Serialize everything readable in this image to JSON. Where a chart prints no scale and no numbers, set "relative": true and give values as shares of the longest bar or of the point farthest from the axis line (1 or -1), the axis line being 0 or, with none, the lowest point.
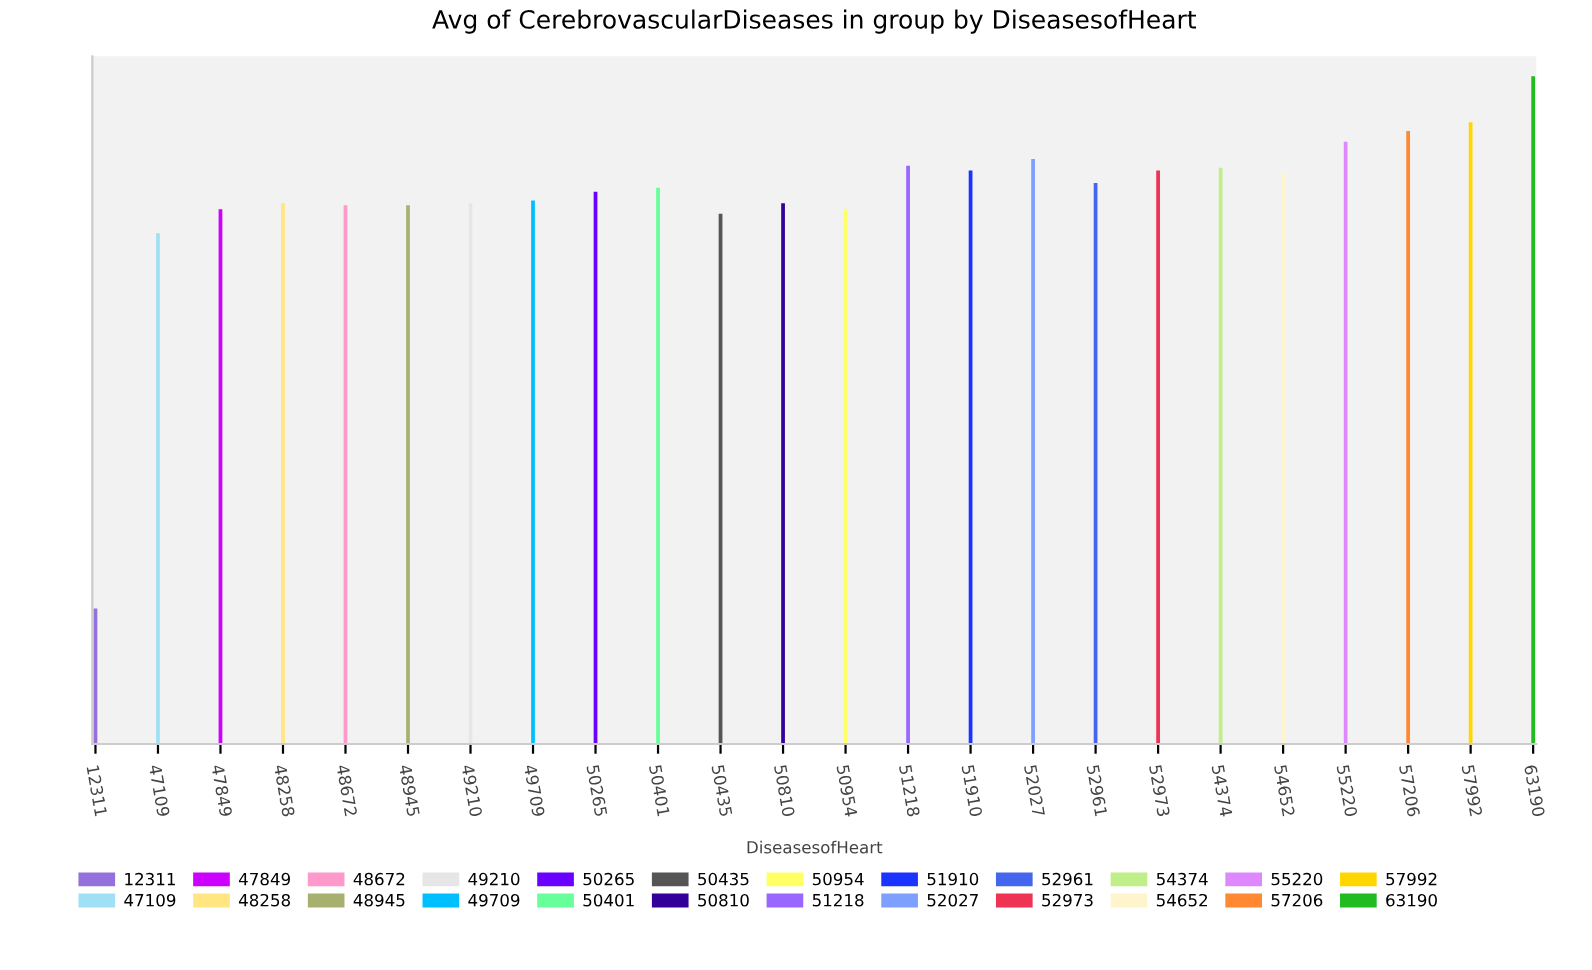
{
  "chart_data": {
    "type": "bar",
    "title": "Avg of CerebrovascularDiseases in group by DiseasesofHeart",
    "xlabel": "DiseasesofHeart",
    "relative": true,
    "legend": "bottom",
    "grid": false,
    "categories": [
      "12311",
      "47109",
      "47849",
      "48258",
      "48672",
      "48945",
      "49210",
      "49709",
      "50265",
      "50401",
      "50435",
      "50810",
      "50954",
      "51218",
      "51910",
      "52027",
      "52961",
      "52973",
      "54374",
      "54652",
      "55220",
      "57206",
      "57992",
      "63190"
    ],
    "series": [
      {
        "name": "12311",
        "color": "#9370db",
        "values": [
          0.203,
          null,
          null,
          null,
          null,
          null,
          null,
          null,
          null,
          null,
          null,
          null,
          null,
          null,
          null,
          null,
          null,
          null,
          null,
          null,
          null,
          null,
          null,
          null
        ]
      },
      {
        "name": "47109",
        "color": "#a0e0f5",
        "values": [
          null,
          0.765,
          null,
          null,
          null,
          null,
          null,
          null,
          null,
          null,
          null,
          null,
          null,
          null,
          null,
          null,
          null,
          null,
          null,
          null,
          null,
          null,
          null,
          null
        ]
      },
      {
        "name": "47849",
        "color": "#cc00ff",
        "values": [
          null,
          null,
          0.801,
          null,
          null,
          null,
          null,
          null,
          null,
          null,
          null,
          null,
          null,
          null,
          null,
          null,
          null,
          null,
          null,
          null,
          null,
          null,
          null,
          null
        ]
      },
      {
        "name": "48258",
        "color": "#ffe680",
        "values": [
          null,
          null,
          null,
          0.81,
          null,
          null,
          null,
          null,
          null,
          null,
          null,
          null,
          null,
          null,
          null,
          null,
          null,
          null,
          null,
          null,
          null,
          null,
          null,
          null
        ]
      },
      {
        "name": "48672",
        "color": "#ff99cc",
        "values": [
          null,
          null,
          null,
          null,
          0.807,
          null,
          null,
          null,
          null,
          null,
          null,
          null,
          null,
          null,
          null,
          null,
          null,
          null,
          null,
          null,
          null,
          null,
          null,
          null
        ]
      },
      {
        "name": "48945",
        "color": "#a8b070",
        "values": [
          null,
          null,
          null,
          null,
          null,
          0.807,
          null,
          null,
          null,
          null,
          null,
          null,
          null,
          null,
          null,
          null,
          null,
          null,
          null,
          null,
          null,
          null,
          null,
          null
        ]
      },
      {
        "name": "49210",
        "color": "#e6e6e6",
        "values": [
          null,
          null,
          null,
          null,
          null,
          null,
          0.81,
          null,
          null,
          null,
          null,
          null,
          null,
          null,
          null,
          null,
          null,
          null,
          null,
          null,
          null,
          null,
          null,
          null
        ]
      },
      {
        "name": "49709",
        "color": "#00bfff",
        "values": [
          null,
          null,
          null,
          null,
          null,
          null,
          null,
          0.814,
          null,
          null,
          null,
          null,
          null,
          null,
          null,
          null,
          null,
          null,
          null,
          null,
          null,
          null,
          null,
          null
        ]
      },
      {
        "name": "50265",
        "color": "#6a00ff",
        "values": [
          null,
          null,
          null,
          null,
          null,
          null,
          null,
          null,
          0.827,
          null,
          null,
          null,
          null,
          null,
          null,
          null,
          null,
          null,
          null,
          null,
          null,
          null,
          null,
          null
        ]
      },
      {
        "name": "50401",
        "color": "#66ff99",
        "values": [
          null,
          null,
          null,
          null,
          null,
          null,
          null,
          null,
          null,
          0.833,
          null,
          null,
          null,
          null,
          null,
          null,
          null,
          null,
          null,
          null,
          null,
          null,
          null,
          null
        ]
      },
      {
        "name": "50435",
        "color": "#555555",
        "values": [
          null,
          null,
          null,
          null,
          null,
          null,
          null,
          null,
          null,
          null,
          0.794,
          null,
          null,
          null,
          null,
          null,
          null,
          null,
          null,
          null,
          null,
          null,
          null,
          null
        ]
      },
      {
        "name": "50810",
        "color": "#330099",
        "values": [
          null,
          null,
          null,
          null,
          null,
          null,
          null,
          null,
          null,
          null,
          null,
          0.81,
          null,
          null,
          null,
          null,
          null,
          null,
          null,
          null,
          null,
          null,
          null,
          null
        ]
      },
      {
        "name": "50954",
        "color": "#ffff66",
        "values": [
          null,
          null,
          null,
          null,
          null,
          null,
          null,
          null,
          null,
          null,
          null,
          null,
          0.801,
          null,
          null,
          null,
          null,
          null,
          null,
          null,
          null,
          null,
          null,
          null
        ]
      },
      {
        "name": "51218",
        "color": "#9966ff",
        "values": [
          null,
          null,
          null,
          null,
          null,
          null,
          null,
          null,
          null,
          null,
          null,
          null,
          null,
          0.866,
          null,
          null,
          null,
          null,
          null,
          null,
          null,
          null,
          null,
          null
        ]
      },
      {
        "name": "51910",
        "color": "#1a33ff",
        "values": [
          null,
          null,
          null,
          null,
          null,
          null,
          null,
          null,
          null,
          null,
          null,
          null,
          null,
          null,
          0.859,
          null,
          null,
          null,
          null,
          null,
          null,
          null,
          null,
          null
        ]
      },
      {
        "name": "52027",
        "color": "#7f9fff",
        "values": [
          null,
          null,
          null,
          null,
          null,
          null,
          null,
          null,
          null,
          null,
          null,
          null,
          null,
          null,
          null,
          0.876,
          null,
          null,
          null,
          null,
          null,
          null,
          null,
          null
        ]
      },
      {
        "name": "52961",
        "color": "#4466ee",
        "values": [
          null,
          null,
          null,
          null,
          null,
          null,
          null,
          null,
          null,
          null,
          null,
          null,
          null,
          null,
          null,
          null,
          0.84,
          null,
          null,
          null,
          null,
          null,
          null,
          null
        ]
      },
      {
        "name": "52973",
        "color": "#ee3355",
        "values": [
          null,
          null,
          null,
          null,
          null,
          null,
          null,
          null,
          null,
          null,
          null,
          null,
          null,
          null,
          null,
          null,
          null,
          0.859,
          null,
          null,
          null,
          null,
          null,
          null
        ]
      },
      {
        "name": "54374",
        "color": "#c0ee88",
        "values": [
          null,
          null,
          null,
          null,
          null,
          null,
          null,
          null,
          null,
          null,
          null,
          null,
          null,
          null,
          null,
          null,
          null,
          null,
          0.863,
          null,
          null,
          null,
          null,
          null
        ]
      },
      {
        "name": "54652",
        "color": "#fff5cc",
        "values": [
          null,
          null,
          null,
          null,
          null,
          null,
          null,
          null,
          null,
          null,
          null,
          null,
          null,
          null,
          null,
          null,
          null,
          null,
          null,
          0.856,
          null,
          null,
          null,
          null
        ]
      },
      {
        "name": "55220",
        "color": "#dd88ff",
        "values": [
          null,
          null,
          null,
          null,
          null,
          null,
          null,
          null,
          null,
          null,
          null,
          null,
          null,
          null,
          null,
          null,
          null,
          null,
          null,
          null,
          0.902,
          null,
          null,
          null
        ]
      },
      {
        "name": "57206",
        "color": "#ff8833",
        "values": [
          null,
          null,
          null,
          null,
          null,
          null,
          null,
          null,
          null,
          null,
          null,
          null,
          null,
          null,
          null,
          null,
          null,
          null,
          null,
          null,
          null,
          0.918,
          null,
          null
        ]
      },
      {
        "name": "57992",
        "color": "#ffd700",
        "values": [
          null,
          null,
          null,
          null,
          null,
          null,
          null,
          null,
          null,
          null,
          null,
          null,
          null,
          null,
          null,
          null,
          null,
          null,
          null,
          null,
          null,
          null,
          0.931,
          null
        ]
      },
      {
        "name": "63190",
        "color": "#22bb22",
        "values": [
          null,
          null,
          null,
          null,
          null,
          null,
          null,
          null,
          null,
          null,
          null,
          null,
          null,
          null,
          null,
          null,
          null,
          null,
          null,
          null,
          null,
          null,
          null,
          1
        ]
      }
    ]
  }
}
